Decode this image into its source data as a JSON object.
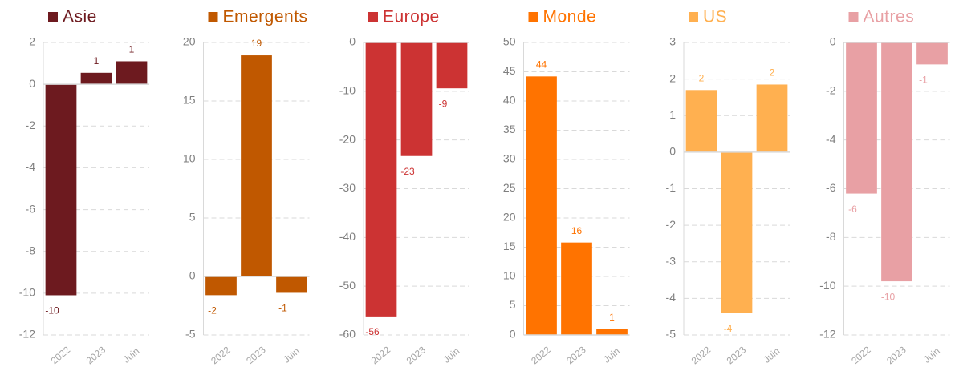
{
  "chart_data": [
    {
      "type": "bar",
      "title": "Asie",
      "categories": [
        "2022",
        "2023",
        "Juin"
      ],
      "values": [
        -10.1,
        0.55,
        1.1
      ],
      "value_labels": [
        "-10",
        "1",
        "1"
      ],
      "color": "#6d1a1f",
      "ylim": [
        -12,
        2
      ],
      "yticks": [
        -12,
        -10,
        -8,
        -6,
        -4,
        -2,
        0,
        2
      ],
      "grid": true
    },
    {
      "type": "bar",
      "title": "Emergents",
      "categories": [
        "2022",
        "2023",
        "Juin"
      ],
      "values": [
        -1.6,
        18.9,
        -1.4
      ],
      "value_labels": [
        "-2",
        "19",
        "-1"
      ],
      "color": "#c05800",
      "ylim": [
        -5,
        20
      ],
      "yticks": [
        -5,
        0,
        5,
        10,
        15,
        20
      ],
      "grid": true
    },
    {
      "type": "bar",
      "title": "Europe",
      "categories": [
        "2022",
        "2023",
        "Juin"
      ],
      "values": [
        -56.2,
        -23.3,
        -9.4
      ],
      "value_labels": [
        "-56",
        "-23",
        "-9"
      ],
      "color": "#cc3333",
      "ylim": [
        -60,
        0
      ],
      "yticks": [
        -60,
        -50,
        -40,
        -30,
        -20,
        -10,
        0
      ],
      "grid": true
    },
    {
      "type": "bar",
      "title": "Monde",
      "categories": [
        "2022",
        "2023",
        "Juin"
      ],
      "values": [
        44.2,
        15.8,
        1.0
      ],
      "value_labels": [
        "44",
        "16",
        "1"
      ],
      "color": "#ff7300",
      "ylim": [
        0,
        50
      ],
      "yticks": [
        0,
        5,
        10,
        15,
        20,
        25,
        30,
        35,
        40,
        45,
        50
      ],
      "grid": true
    },
    {
      "type": "bar",
      "title": "US",
      "categories": [
        "2022",
        "2023",
        "Juin"
      ],
      "values": [
        1.7,
        -4.4,
        1.85
      ],
      "value_labels": [
        "2",
        "-4",
        "2"
      ],
      "color": "#ffb050",
      "ylim": [
        -5,
        3
      ],
      "yticks": [
        -5,
        -4,
        -3,
        -2,
        -1,
        0,
        1,
        2,
        3
      ],
      "grid": true
    },
    {
      "type": "bar",
      "title": "Autres",
      "categories": [
        "2022",
        "2023",
        "Juin"
      ],
      "values": [
        -6.2,
        -9.8,
        -0.9
      ],
      "value_labels": [
        "-6",
        "-10",
        "-1"
      ],
      "color": "#e8a0a4",
      "ylim": [
        -12,
        0
      ],
      "yticks": [
        -12,
        -10,
        -8,
        -6,
        -4,
        -2,
        0
      ],
      "grid": true
    }
  ]
}
